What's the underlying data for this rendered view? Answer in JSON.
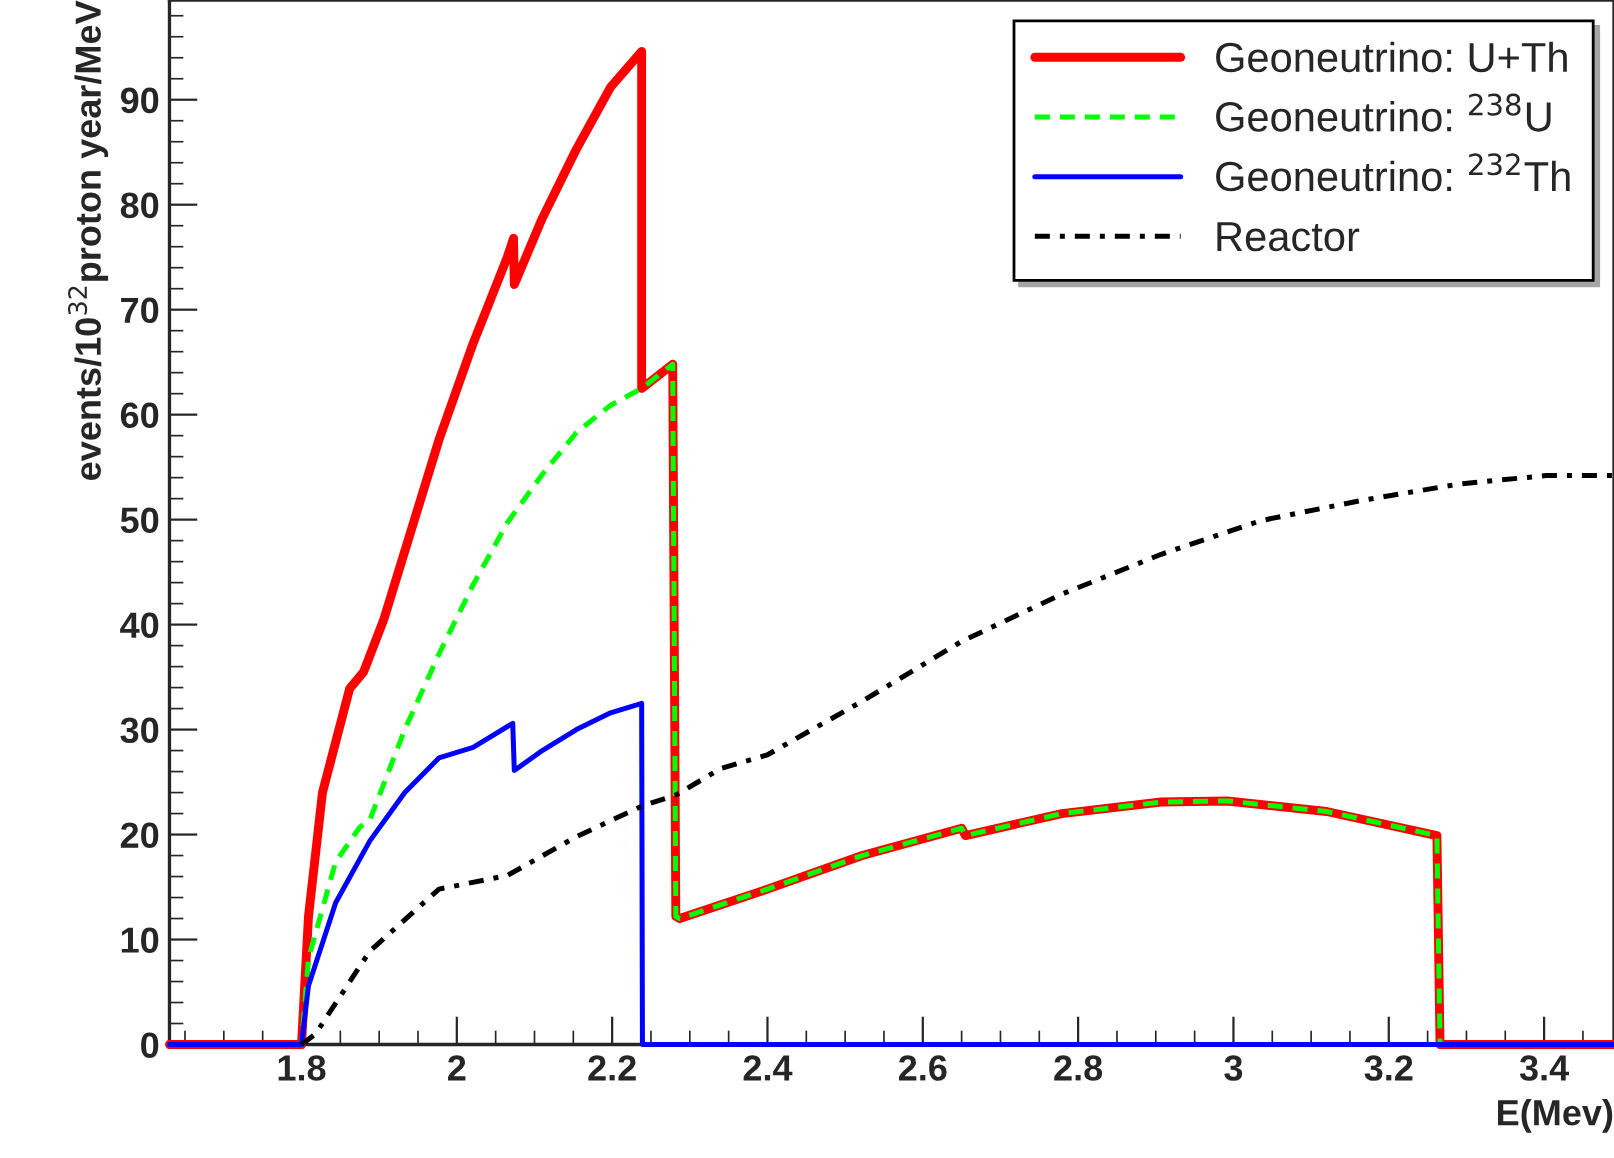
{
  "chart_data": {
    "type": "line",
    "xlabel": "E(Mev)",
    "ylabel": "events/10$^{32}$proton year/MeV",
    "xlim": [
      1.63,
      3.49
    ],
    "ylim": [
      0,
      99.5
    ],
    "xticks": [
      1.8,
      2,
      2.2,
      2.4,
      2.6,
      2.8,
      3,
      3.2,
      3.4
    ],
    "yticks": [
      0,
      10,
      20,
      30,
      40,
      50,
      60,
      70,
      80,
      90
    ],
    "grid": false,
    "legend": "top right",
    "marker": "none",
    "series": [
      {
        "name": "Geoneutrino: U+Th",
        "color": "#ff0000",
        "line_style": "solid",
        "x": [
          1.63,
          1.8,
          1.809,
          1.827,
          1.862,
          1.88,
          1.906,
          1.933,
          1.977,
          2.021,
          2.065,
          2.073,
          2.074,
          2.11,
          2.154,
          2.198,
          2.238,
          2.238,
          2.278,
          2.282,
          2.287,
          2.4,
          2.522,
          2.65,
          2.655,
          2.779,
          2.907,
          2.992,
          3.12,
          3.262,
          3.266,
          3.49
        ],
        "values": [
          0,
          0,
          12.2,
          24,
          33.9,
          35.5,
          40.5,
          47,
          57.6,
          66.8,
          75,
          76.8,
          72.4,
          78.7,
          85.3,
          91.2,
          94.6,
          62.5,
          64.8,
          12.2,
          12,
          14.8,
          18,
          20.6,
          19.9,
          22,
          23.1,
          23.2,
          22.2,
          19.9,
          0,
          0
        ]
      },
      {
        "name": "Geoneutrino: $^{238}$U",
        "color": "#00ff00",
        "line_style": "dashed",
        "x": [
          1.63,
          1.8,
          1.809,
          1.844,
          1.875,
          1.888,
          1.933,
          1.977,
          2.021,
          2.065,
          2.11,
          2.154,
          2.198,
          2.238,
          2.278,
          2.282,
          2.287,
          2.4,
          2.522,
          2.65,
          2.655,
          2.779,
          2.907,
          2.992,
          3.12,
          3.262,
          3.266,
          3.49
        ],
        "values": [
          0,
          0,
          8.2,
          17.4,
          20.7,
          21.4,
          30,
          37.2,
          43.8,
          49.7,
          54.3,
          58.3,
          60.9,
          62.5,
          64.8,
          12.2,
          12,
          14.8,
          18,
          20.6,
          19.9,
          22,
          23.1,
          23.2,
          22.2,
          19.9,
          0,
          0
        ]
      },
      {
        "name": "Geoneutrino: $^{232}$Th",
        "color": "#0000ff",
        "line_style": "solid",
        "x": [
          1.63,
          1.8,
          1.809,
          1.844,
          1.888,
          1.933,
          1.977,
          2.021,
          2.072,
          2.074,
          2.11,
          2.154,
          2.198,
          2.238,
          2.239,
          3.49
        ],
        "values": [
          0,
          0,
          5.6,
          13.5,
          19.4,
          24,
          27.3,
          28.3,
          30.6,
          26.1,
          28,
          30,
          31.6,
          32.5,
          0,
          0
        ]
      },
      {
        "name": "Reactor",
        "color": "#000000",
        "line_style": "dotted",
        "x": [
          1.8,
          1.818,
          1.888,
          1.977,
          2.065,
          2.154,
          2.238,
          2.283,
          2.34,
          2.4,
          2.522,
          2.65,
          2.779,
          2.907,
          3.035,
          3.163,
          3.291,
          3.403,
          3.488
        ],
        "values": [
          0,
          1,
          8.9,
          14.8,
          16.1,
          19.8,
          22.7,
          23.8,
          26.3,
          27.6,
          32.7,
          38.4,
          42.9,
          46.7,
          49.9,
          51.8,
          53.4,
          54.2,
          54.2
        ]
      }
    ]
  }
}
